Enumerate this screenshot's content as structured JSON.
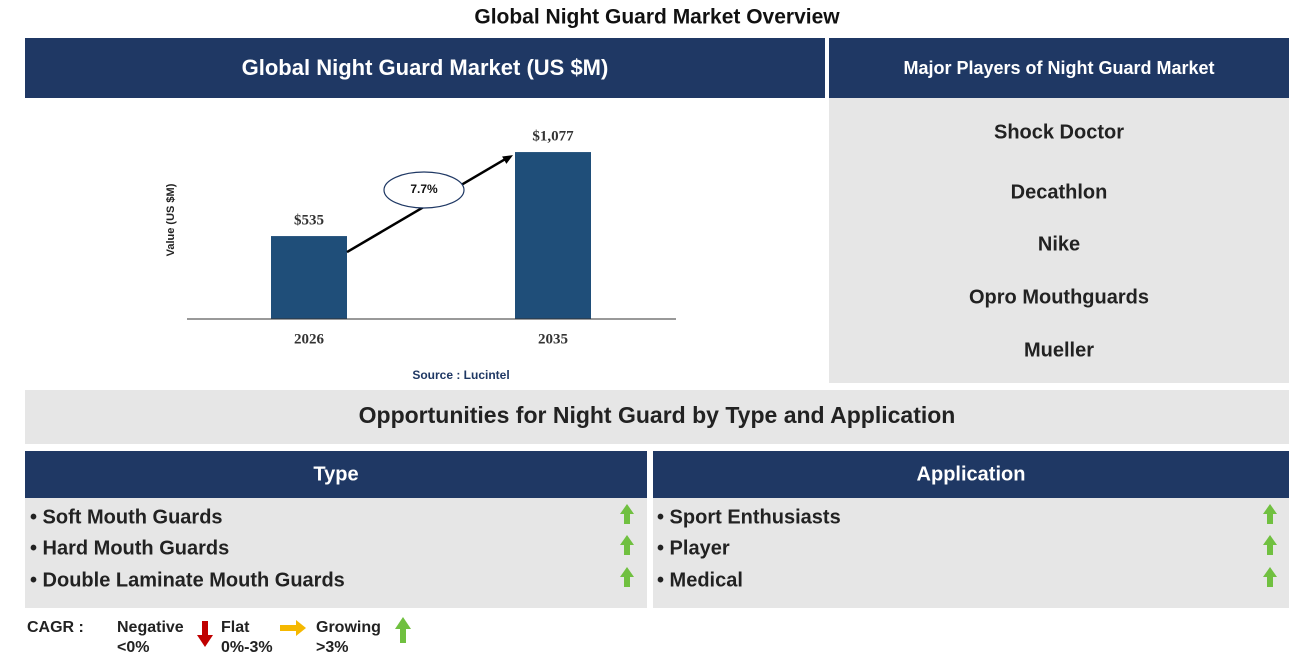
{
  "title": "Global Night Guard Market Overview",
  "chart_panel": {
    "header": "Global Night Guard Market (US $M)"
  },
  "chart_data": {
    "type": "bar",
    "y_label": "Value (US $M)",
    "categories": [
      "2026",
      "2035"
    ],
    "values": [
      535,
      1077
    ],
    "value_labels": [
      "$535",
      "$1,077"
    ],
    "color": "#1f4e79",
    "ylim": [
      0,
      1200
    ],
    "annotation": "7.7%",
    "source": "Source : Lucintel"
  },
  "players": {
    "header": "Major Players of Night Guard Market",
    "items": [
      "Shock Doctor",
      "Decathlon",
      "Nike",
      "Opro Mouthguards",
      "Mueller"
    ]
  },
  "opportunities": {
    "title": "Opportunities for Night Guard by Type and Application",
    "type": {
      "header": "Type",
      "items": [
        "• Soft Mouth Guards",
        "• Hard Mouth Guards",
        "• Double Laminate Mouth Guards"
      ]
    },
    "application": {
      "header": "Application",
      "items": [
        "• Sport Enthusiasts",
        "• Player",
        "• Medical"
      ]
    }
  },
  "legend": {
    "label": "CAGR :",
    "negative": [
      "Negative",
      "<0%"
    ],
    "flat": [
      "Flat",
      "0%-3%"
    ],
    "growing": [
      "Growing",
      ">3%"
    ]
  }
}
